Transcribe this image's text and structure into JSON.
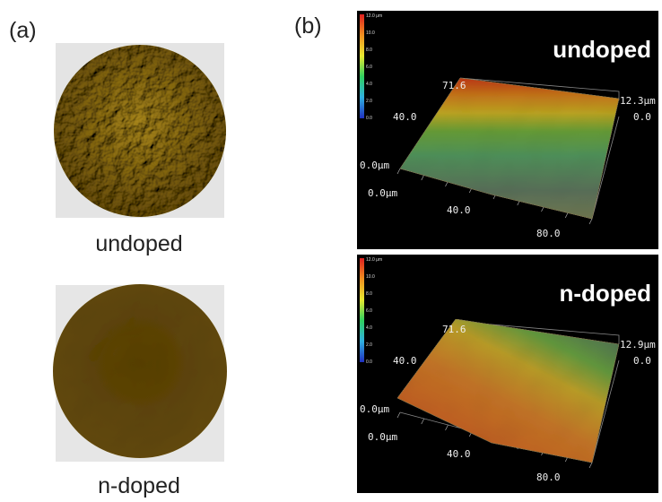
{
  "panel_a": {
    "label": "(a)",
    "samples": [
      {
        "caption": "undoped"
      },
      {
        "caption": "n-doped"
      }
    ]
  },
  "panel_b": {
    "label": "(b)",
    "plots": [
      {
        "title": "undoped",
        "scale_labels": [
          "12.0 μm",
          "10.0",
          "8.0",
          "6.0",
          "4.0",
          "2.0",
          "0.0"
        ],
        "axis_labels": [
          "71.6",
          "40.0",
          "0.0μm",
          "0.0μm",
          "40.0",
          "80.0",
          "12.3μm",
          "0.0"
        ]
      },
      {
        "title": "n-doped",
        "scale_labels": [
          "12.0 μm",
          "10.0",
          "8.0",
          "6.0",
          "4.0",
          "2.0",
          "0.0"
        ],
        "axis_labels": [
          "71.6",
          "40.0",
          "0.0μm",
          "0.0μm",
          "40.0",
          "80.0",
          "12.9μm",
          "0.0"
        ]
      }
    ]
  }
}
